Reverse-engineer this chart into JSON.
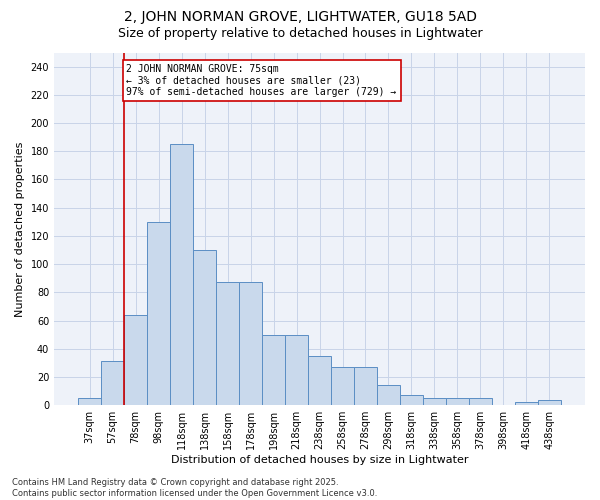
{
  "title": "2, JOHN NORMAN GROVE, LIGHTWATER, GU18 5AD",
  "subtitle": "Size of property relative to detached houses in Lightwater",
  "xlabel": "Distribution of detached houses by size in Lightwater",
  "ylabel": "Number of detached properties",
  "categories": [
    "37sqm",
    "57sqm",
    "78sqm",
    "98sqm",
    "118sqm",
    "138sqm",
    "158sqm",
    "178sqm",
    "198sqm",
    "218sqm",
    "238sqm",
    "258sqm",
    "278sqm",
    "298sqm",
    "318sqm",
    "338sqm",
    "358sqm",
    "378sqm",
    "398sqm",
    "418sqm",
    "438sqm"
  ],
  "values": [
    5,
    31,
    64,
    130,
    185,
    110,
    87,
    87,
    50,
    50,
    35,
    27,
    27,
    14,
    7,
    5,
    5,
    5,
    0,
    2,
    4
  ],
  "bar_color": "#c9d9ec",
  "bar_edge_color": "#5b8ec4",
  "grid_color": "#c8d4e8",
  "background_color": "#eef2f9",
  "vline_color": "#cc0000",
  "annotation_line1": "2 JOHN NORMAN GROVE: 75sqm",
  "annotation_line2": "← 3% of detached houses are smaller (23)",
  "annotation_line3": "97% of semi-detached houses are larger (729) →",
  "annotation_box_color": "#cc0000",
  "ylim": [
    0,
    250
  ],
  "yticks": [
    0,
    20,
    40,
    60,
    80,
    100,
    120,
    140,
    160,
    180,
    200,
    220,
    240
  ],
  "footer_text": "Contains HM Land Registry data © Crown copyright and database right 2025.\nContains public sector information licensed under the Open Government Licence v3.0.",
  "title_fontsize": 10,
  "subtitle_fontsize": 9,
  "axis_label_fontsize": 8,
  "tick_fontsize": 7,
  "annotation_fontsize": 7,
  "footer_fontsize": 6
}
